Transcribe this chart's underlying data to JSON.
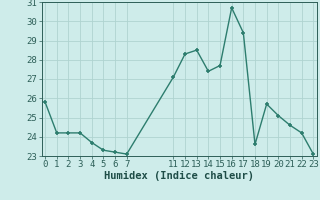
{
  "x": [
    0,
    1,
    2,
    3,
    4,
    5,
    6,
    7,
    11,
    12,
    13,
    14,
    15,
    16,
    17,
    18,
    19,
    20,
    21,
    22,
    23
  ],
  "y": [
    25.8,
    24.2,
    24.2,
    24.2,
    23.7,
    23.3,
    23.2,
    23.1,
    27.1,
    28.3,
    28.5,
    27.4,
    27.7,
    30.7,
    29.4,
    23.6,
    25.7,
    25.1,
    24.6,
    24.2,
    23.1
  ],
  "xlabel": "Humidex (Indice chaleur)",
  "line_color": "#2d7d6e",
  "marker_color": "#2d7d6e",
  "bg_color": "#ceecea",
  "grid_color": "#afd4d0",
  "tick_color": "#2d5f58",
  "label_color": "#1e4d47",
  "ylim_min": 23,
  "ylim_max": 31,
  "yticks": [
    23,
    24,
    25,
    26,
    27,
    28,
    29,
    30,
    31
  ],
  "xticks": [
    0,
    1,
    2,
    3,
    4,
    5,
    6,
    7,
    11,
    12,
    13,
    14,
    15,
    16,
    17,
    18,
    19,
    20,
    21,
    22,
    23
  ],
  "xtick_labels": [
    "0",
    "1",
    "2",
    "3",
    "4",
    "5",
    "6",
    "7",
    "11",
    "12",
    "13",
    "14",
    "15",
    "16",
    "17",
    "18",
    "19",
    "20",
    "21",
    "22",
    "23"
  ],
  "font_size": 6.5,
  "xlabel_font_size": 7.5,
  "xlim_min": -0.3,
  "xlim_max": 23.3
}
